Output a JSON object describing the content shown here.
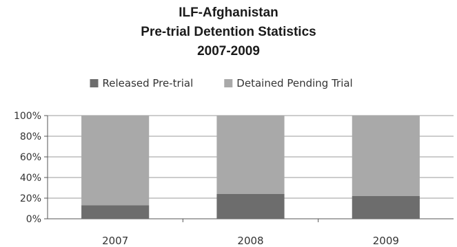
{
  "chart_data": {
    "type": "bar",
    "stacked": true,
    "title": [
      "ILF-Afghanistan",
      "Pre-trial Detention Statistics",
      "2007-2009"
    ],
    "categories": [
      "2007",
      "2008",
      "2009"
    ],
    "series": [
      {
        "name": "Released Pre-trial",
        "values": [
          13,
          24,
          22
        ],
        "color": "#6d6d6d"
      },
      {
        "name": "Detained Pending Trial",
        "values": [
          87,
          76,
          78
        ],
        "color": "#a9a9a9"
      }
    ],
    "yticks": [
      "0%",
      "20%",
      "40%",
      "60%",
      "80%",
      "100%"
    ],
    "ylim": [
      0,
      100
    ],
    "grid": true,
    "legend": "top-center"
  }
}
